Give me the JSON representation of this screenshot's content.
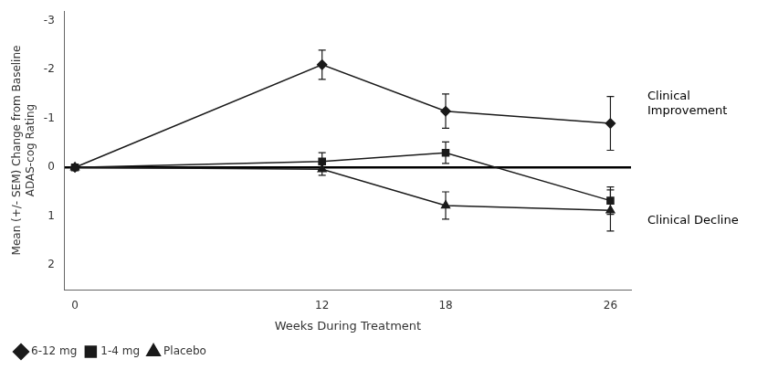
{
  "chart_data": {
    "type": "line",
    "x": [
      0,
      12,
      18,
      26
    ],
    "series": [
      {
        "name": "6-12 mg",
        "color": "#1a1a1a",
        "marker": "diamond",
        "line_style": "solid",
        "values": [
          0,
          -2.1,
          -1.15,
          -0.9
        ],
        "errors": [
          0.0,
          0.3,
          0.35,
          0.55
        ]
      },
      {
        "name": "1-4 mg",
        "color": "#1a1a1a",
        "marker": "square",
        "line_style": "solid",
        "values": [
          0,
          -0.12,
          -0.3,
          0.68
        ],
        "errors": [
          0.0,
          0.18,
          0.22,
          0.28
        ]
      },
      {
        "name": "Placebo",
        "color": "#1a1a1a",
        "marker": "triangle",
        "line_style": "solid",
        "values": [
          0,
          0.04,
          0.78,
          0.88
        ],
        "errors": [
          0.0,
          0.12,
          0.28,
          0.42
        ]
      }
    ],
    "xlim": [
      -0.5,
      27
    ],
    "ylim": [
      2.5,
      -3.2
    ],
    "xticks": [
      0,
      12,
      18,
      26
    ],
    "yticks": [
      -3,
      -2,
      -1,
      0,
      1,
      2
    ],
    "xlabel": "Weeks During Treatment",
    "ylabel": "Mean (+/- SEM) Change from Baseline\nADAS-cog Rating",
    "hlines": [
      0
    ],
    "annotations": [
      {
        "text": "Clinical\nImprovement",
        "y": -1.3
      },
      {
        "text": "Clinical Decline",
        "y": 1.1
      }
    ],
    "legend": "lower left",
    "grid": false
  }
}
